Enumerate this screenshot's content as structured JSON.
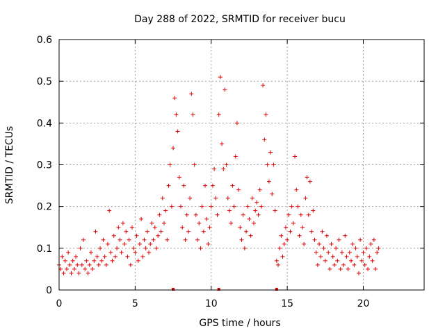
{
  "colors": {
    "series": "#e00000",
    "background": "#ffffff",
    "axis": "#000000",
    "grid": "#a0a0a0"
  },
  "chart_data": {
    "type": "scatter",
    "title": "Day 288 of 2022, SRMTID for receiver bucu",
    "xlabel": "GPS time / hours",
    "ylabel": "SRMTID / TECUs",
    "xlim": [
      0,
      24
    ],
    "ylim": [
      0,
      0.6
    ],
    "grid": true,
    "marker": "plus",
    "xticks": [
      {
        "value": 0,
        "label": "0"
      },
      {
        "value": 5,
        "label": "5"
      },
      {
        "value": 10,
        "label": "10"
      },
      {
        "value": 15,
        "label": "15"
      },
      {
        "value": 20,
        "label": "20"
      }
    ],
    "yticks": [
      {
        "value": 0,
        "label": "0"
      },
      {
        "value": 0.1,
        "label": "0.1"
      },
      {
        "value": 0.2,
        "label": "0.2"
      },
      {
        "value": 0.3,
        "label": "0.3"
      },
      {
        "value": 0.4,
        "label": "0.4"
      },
      {
        "value": 0.5,
        "label": "0.5"
      },
      {
        "value": 0.6,
        "label": "0.6"
      }
    ],
    "baseline_markers": [
      7.5,
      10.5,
      14.3
    ],
    "series": [
      {
        "name": "SRMTID",
        "points": [
          [
            0.0,
            0.06
          ],
          [
            0.1,
            0.05
          ],
          [
            0.2,
            0.08
          ],
          [
            0.3,
            0.04
          ],
          [
            0.4,
            0.07
          ],
          [
            0.5,
            0.05
          ],
          [
            0.6,
            0.09
          ],
          [
            0.7,
            0.06
          ],
          [
            0.8,
            0.04
          ],
          [
            0.9,
            0.07
          ],
          [
            1.0,
            0.05
          ],
          [
            1.1,
            0.08
          ],
          [
            1.2,
            0.06
          ],
          [
            1.3,
            0.04
          ],
          [
            1.4,
            0.1
          ],
          [
            1.5,
            0.06
          ],
          [
            1.6,
            0.12
          ],
          [
            1.7,
            0.05
          ],
          [
            1.8,
            0.07
          ],
          [
            1.9,
            0.04
          ],
          [
            2.0,
            0.06
          ],
          [
            2.1,
            0.09
          ],
          [
            2.2,
            0.05
          ],
          [
            2.3,
            0.07
          ],
          [
            2.4,
            0.14
          ],
          [
            2.5,
            0.08
          ],
          [
            2.6,
            0.06
          ],
          [
            2.7,
            0.1
          ],
          [
            2.8,
            0.07
          ],
          [
            2.9,
            0.12
          ],
          [
            3.0,
            0.08
          ],
          [
            3.1,
            0.06
          ],
          [
            3.2,
            0.11
          ],
          [
            3.3,
            0.19
          ],
          [
            3.4,
            0.09
          ],
          [
            3.5,
            0.07
          ],
          [
            3.6,
            0.13
          ],
          [
            3.7,
            0.08
          ],
          [
            3.8,
            0.1
          ],
          [
            3.9,
            0.15
          ],
          [
            4.0,
            0.12
          ],
          [
            4.1,
            0.09
          ],
          [
            4.2,
            0.16
          ],
          [
            4.3,
            0.11
          ],
          [
            4.4,
            0.14
          ],
          [
            4.5,
            0.08
          ],
          [
            4.6,
            0.12
          ],
          [
            4.7,
            0.06
          ],
          [
            4.8,
            0.15
          ],
          [
            4.9,
            0.1
          ],
          [
            5.0,
            0.09
          ],
          [
            5.1,
            0.13
          ],
          [
            5.2,
            0.07
          ],
          [
            5.3,
            0.11
          ],
          [
            5.4,
            0.17
          ],
          [
            5.5,
            0.08
          ],
          [
            5.6,
            0.12
          ],
          [
            5.7,
            0.1
          ],
          [
            5.8,
            0.14
          ],
          [
            5.9,
            0.09
          ],
          [
            6.0,
            0.11
          ],
          [
            6.1,
            0.16
          ],
          [
            6.2,
            0.12
          ],
          [
            6.3,
            0.15
          ],
          [
            6.4,
            0.1
          ],
          [
            6.5,
            0.13
          ],
          [
            6.6,
            0.18
          ],
          [
            6.7,
            0.14
          ],
          [
            6.8,
            0.22
          ],
          [
            6.9,
            0.16
          ],
          [
            7.0,
            0.19
          ],
          [
            7.1,
            0.12
          ],
          [
            7.2,
            0.25
          ],
          [
            7.3,
            0.3
          ],
          [
            7.4,
            0.2
          ],
          [
            7.5,
            0.34
          ],
          [
            7.6,
            0.46
          ],
          [
            7.7,
            0.42
          ],
          [
            7.8,
            0.38
          ],
          [
            7.9,
            0.27
          ],
          [
            8.0,
            0.2
          ],
          [
            8.1,
            0.15
          ],
          [
            8.2,
            0.25
          ],
          [
            8.3,
            0.12
          ],
          [
            8.4,
            0.18
          ],
          [
            8.5,
            0.14
          ],
          [
            8.6,
            0.22
          ],
          [
            8.7,
            0.47
          ],
          [
            8.8,
            0.42
          ],
          [
            8.9,
            0.3
          ],
          [
            9.0,
            0.18
          ],
          [
            9.1,
            0.12
          ],
          [
            9.2,
            0.16
          ],
          [
            9.3,
            0.1
          ],
          [
            9.4,
            0.2
          ],
          [
            9.5,
            0.14
          ],
          [
            9.6,
            0.25
          ],
          [
            9.7,
            0.17
          ],
          [
            9.8,
            0.11
          ],
          [
            9.9,
            0.15
          ],
          [
            10.0,
            0.2
          ],
          [
            10.1,
            0.25
          ],
          [
            10.2,
            0.29
          ],
          [
            10.3,
            0.22
          ],
          [
            10.4,
            0.18
          ],
          [
            10.5,
            0.42
          ],
          [
            10.6,
            0.51
          ],
          [
            10.7,
            0.35
          ],
          [
            10.8,
            0.29
          ],
          [
            10.9,
            0.48
          ],
          [
            11.0,
            0.3
          ],
          [
            11.1,
            0.22
          ],
          [
            11.2,
            0.19
          ],
          [
            11.3,
            0.16
          ],
          [
            11.4,
            0.25
          ],
          [
            11.5,
            0.2
          ],
          [
            11.6,
            0.32
          ],
          [
            11.7,
            0.4
          ],
          [
            11.8,
            0.24
          ],
          [
            11.9,
            0.15
          ],
          [
            12.0,
            0.12
          ],
          [
            12.1,
            0.18
          ],
          [
            12.2,
            0.1
          ],
          [
            12.3,
            0.14
          ],
          [
            12.4,
            0.2
          ],
          [
            12.5,
            0.17
          ],
          [
            12.6,
            0.13
          ],
          [
            12.7,
            0.22
          ],
          [
            12.8,
            0.16
          ],
          [
            12.9,
            0.19
          ],
          [
            13.0,
            0.21
          ],
          [
            13.1,
            0.18
          ],
          [
            13.2,
            0.24
          ],
          [
            13.3,
            0.2
          ],
          [
            13.4,
            0.49
          ],
          [
            13.5,
            0.36
          ],
          [
            13.6,
            0.42
          ],
          [
            13.7,
            0.3
          ],
          [
            13.8,
            0.26
          ],
          [
            13.9,
            0.33
          ],
          [
            14.0,
            0.23
          ],
          [
            14.1,
            0.3
          ],
          [
            14.2,
            0.19
          ],
          [
            14.3,
            0.07
          ],
          [
            14.4,
            0.06
          ],
          [
            14.5,
            0.1
          ],
          [
            14.6,
            0.13
          ],
          [
            14.7,
            0.08
          ],
          [
            14.8,
            0.11
          ],
          [
            14.9,
            0.15
          ],
          [
            15.0,
            0.12
          ],
          [
            15.1,
            0.18
          ],
          [
            15.2,
            0.14
          ],
          [
            15.3,
            0.2
          ],
          [
            15.4,
            0.16
          ],
          [
            15.5,
            0.32
          ],
          [
            15.6,
            0.24
          ],
          [
            15.7,
            0.2
          ],
          [
            15.8,
            0.13
          ],
          [
            15.9,
            0.18
          ],
          [
            16.0,
            0.15
          ],
          [
            16.1,
            0.11
          ],
          [
            16.2,
            0.22
          ],
          [
            16.3,
            0.27
          ],
          [
            16.4,
            0.18
          ],
          [
            16.5,
            0.26
          ],
          [
            16.6,
            0.14
          ],
          [
            16.7,
            0.19
          ],
          [
            16.8,
            0.12
          ],
          [
            16.9,
            0.09
          ],
          [
            17.0,
            0.06
          ],
          [
            17.1,
            0.11
          ],
          [
            17.2,
            0.08
          ],
          [
            17.3,
            0.14
          ],
          [
            17.4,
            0.1
          ],
          [
            17.5,
            0.07
          ],
          [
            17.6,
            0.13
          ],
          [
            17.7,
            0.09
          ],
          [
            17.8,
            0.05
          ],
          [
            17.9,
            0.11
          ],
          [
            18.0,
            0.08
          ],
          [
            18.1,
            0.06
          ],
          [
            18.2,
            0.1
          ],
          [
            18.3,
            0.07
          ],
          [
            18.4,
            0.12
          ],
          [
            18.5,
            0.05
          ],
          [
            18.6,
            0.09
          ],
          [
            18.7,
            0.06
          ],
          [
            18.8,
            0.13
          ],
          [
            18.9,
            0.08
          ],
          [
            19.0,
            0.05
          ],
          [
            19.1,
            0.09
          ],
          [
            19.2,
            0.07
          ],
          [
            19.3,
            0.11
          ],
          [
            19.4,
            0.06
          ],
          [
            19.5,
            0.1
          ],
          [
            19.6,
            0.08
          ],
          [
            19.7,
            0.04
          ],
          [
            19.8,
            0.12
          ],
          [
            19.9,
            0.07
          ],
          [
            20.0,
            0.09
          ],
          [
            20.1,
            0.06
          ],
          [
            20.2,
            0.1
          ],
          [
            20.3,
            0.05
          ],
          [
            20.4,
            0.08
          ],
          [
            20.5,
            0.11
          ],
          [
            20.6,
            0.07
          ],
          [
            20.7,
            0.12
          ],
          [
            20.8,
            0.05
          ],
          [
            20.9,
            0.09
          ],
          [
            21.0,
            0.1
          ]
        ]
      }
    ]
  }
}
